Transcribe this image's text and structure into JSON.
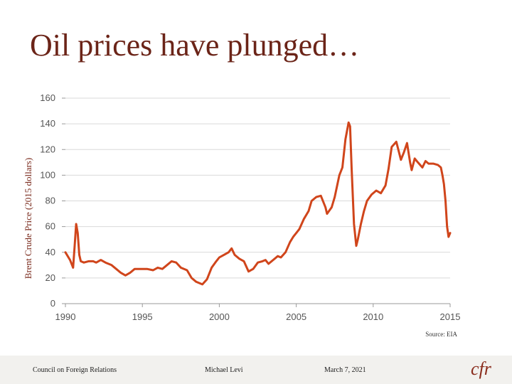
{
  "slide": {
    "title": "Oil prices have plunged…",
    "source": "Source: EIA"
  },
  "footer": {
    "org": "Council on Foreign Relations",
    "author": "Michael Levi",
    "date": "March 7, 2021",
    "logo": "cfr"
  },
  "colors": {
    "line": "#d0451b",
    "grid": "#d9d9d9",
    "title": "#6b2418"
  },
  "chart_data": {
    "type": "line",
    "title": "",
    "xlabel": "",
    "ylabel": "Brent Crude Price (2015 dollars)",
    "xlim": [
      1990,
      2015
    ],
    "ylim": [
      0,
      160
    ],
    "x_ticks": [
      1990,
      1995,
      2000,
      2005,
      2010,
      2015
    ],
    "y_ticks": [
      0,
      20,
      40,
      60,
      80,
      100,
      120,
      140,
      160
    ],
    "grid": true,
    "series": [
      {
        "name": "Brent crude price (2015 dollars)",
        "x": [
          1990.0,
          1990.3,
          1990.5,
          1990.6,
          1990.7,
          1990.8,
          1990.9,
          1991.0,
          1991.2,
          1991.5,
          1991.8,
          1992.0,
          1992.3,
          1992.6,
          1993.0,
          1993.3,
          1993.6,
          1993.9,
          1994.2,
          1994.5,
          1994.9,
          1995.3,
          1995.7,
          1996.0,
          1996.3,
          1996.6,
          1996.9,
          1997.2,
          1997.5,
          1997.9,
          1998.2,
          1998.5,
          1998.9,
          1999.2,
          1999.5,
          1999.8,
          2000.0,
          2000.3,
          2000.6,
          2000.8,
          2001.0,
          2001.3,
          2001.6,
          2001.9,
          2002.2,
          2002.5,
          2002.8,
          2003.0,
          2003.2,
          2003.5,
          2003.8,
          2004.0,
          2004.3,
          2004.6,
          2004.8,
          2005.0,
          2005.2,
          2005.5,
          2005.8,
          2006.0,
          2006.3,
          2006.6,
          2006.9,
          2007.0,
          2007.3,
          2007.5,
          2007.8,
          2008.0,
          2008.2,
          2008.4,
          2008.5,
          2008.6,
          2008.75,
          2008.9,
          2009.0,
          2009.2,
          2009.4,
          2009.6,
          2009.9,
          2010.2,
          2010.5,
          2010.8,
          2011.0,
          2011.2,
          2011.5,
          2011.8,
          2012.0,
          2012.2,
          2012.4,
          2012.5,
          2012.7,
          2012.9,
          2013.2,
          2013.4,
          2013.6,
          2013.9,
          2014.2,
          2014.4,
          2014.5,
          2014.6,
          2014.7,
          2014.8,
          2014.9,
          2015.0
        ],
        "values": [
          40,
          34,
          28,
          45,
          62,
          55,
          38,
          33,
          32,
          33,
          33,
          32,
          34,
          32,
          30,
          27,
          24,
          22,
          24,
          27,
          27,
          27,
          26,
          28,
          27,
          30,
          33,
          32,
          28,
          26,
          20,
          17,
          15,
          19,
          28,
          33,
          36,
          38,
          40,
          43,
          38,
          35,
          33,
          25,
          27,
          32,
          33,
          34,
          31,
          34,
          37,
          36,
          40,
          48,
          52,
          55,
          58,
          66,
          72,
          80,
          83,
          84,
          75,
          70,
          75,
          83,
          100,
          106,
          128,
          141,
          138,
          105,
          62,
          45,
          50,
          62,
          72,
          80,
          85,
          88,
          86,
          92,
          105,
          122,
          126,
          112,
          118,
          125,
          110,
          104,
          113,
          110,
          106,
          111,
          109,
          109,
          108,
          106,
          100,
          93,
          80,
          60,
          52,
          55
        ]
      }
    ]
  }
}
